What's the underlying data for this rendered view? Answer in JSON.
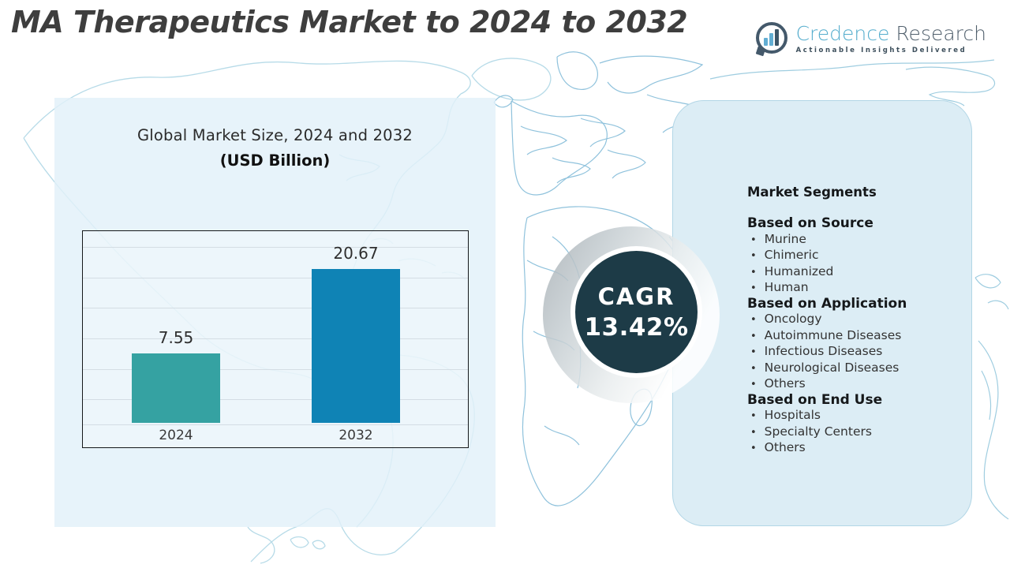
{
  "header": {
    "title": "MA Therapeutics Market to 2024 to 2032"
  },
  "logo": {
    "name_blue": "Credence",
    "name_dark": "Research",
    "tagline": "Actionable Insights Delivered",
    "icon": "bar-chart-speech-bubble-icon"
  },
  "chart_data": {
    "type": "bar",
    "title": "Global Market Size, 2024 and 2032",
    "subtitle": "(USD Billion)",
    "categories": [
      "2024",
      "2032"
    ],
    "values": [
      7.55,
      20.67
    ],
    "bar_colors": [
      "#35a2a2",
      "#0f83b5"
    ],
    "value_labels": [
      "7.55",
      "20.67"
    ],
    "xlabel": "",
    "ylabel": "",
    "ylim": [
      0,
      25
    ],
    "grid": true,
    "legend": "none"
  },
  "cagr": {
    "label": "CAGR",
    "value": "13.42%"
  },
  "segments": {
    "heading": "Market Segments",
    "sections": [
      {
        "heading": "Based on Source",
        "items": [
          "Murine",
          "Chimeric",
          "Humanized",
          "Human"
        ]
      },
      {
        "heading": "Based on Application",
        "items": [
          "Oncology",
          "Autoimmune Diseases",
          "Infectious Diseases",
          "Neurological Diseases",
          "Others"
        ]
      },
      {
        "heading": "Based on End Use",
        "items": [
          "Hospitals",
          "Specialty Centers",
          "Others"
        ]
      }
    ]
  },
  "colors": {
    "bar_2024": "#35a2a2",
    "bar_2032": "#0f83b5",
    "cagr_circle": "#1d3b47",
    "left_panel": "#e2f0f9",
    "right_panel": "#dcedf5",
    "map_line_light": "#b7dbe8",
    "map_line_strong": "#8fc2dc",
    "logo_blue": "#55adcd",
    "logo_slate": "#51606d"
  }
}
